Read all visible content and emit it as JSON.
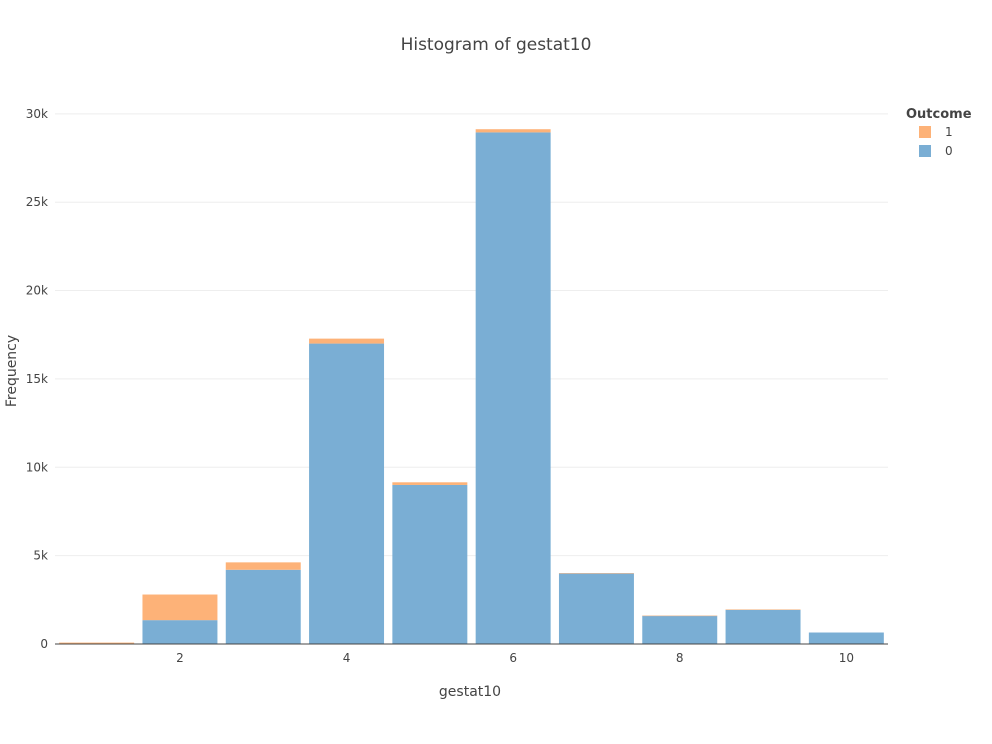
{
  "chart_data": {
    "type": "bar",
    "title": "Histogram of gestat10",
    "xlabel": "gestat10",
    "ylabel": "Frequency",
    "categories": [
      1,
      2,
      3,
      4,
      5,
      6,
      7,
      8,
      9,
      10
    ],
    "x_ticks": [
      2,
      4,
      6,
      8,
      10
    ],
    "x_tick_labels": [
      "2",
      "4",
      "6",
      "8",
      "10"
    ],
    "xlim": [
      0.5,
      10.5
    ],
    "ylim": [
      0,
      30500
    ],
    "y_ticks": [
      0,
      5000,
      10000,
      15000,
      20000,
      25000,
      30000
    ],
    "y_tick_labels": [
      "0",
      "5k",
      "10k",
      "15k",
      "20k",
      "25k",
      "30k"
    ],
    "stacked": true,
    "grid": true,
    "legend_position": "top-right",
    "legend_title": "Outcome",
    "series": [
      {
        "name": "0",
        "color": "#7aaed4",
        "values": [
          20,
          1350,
          4200,
          17000,
          9000,
          28950,
          4000,
          1600,
          1950,
          650
        ]
      },
      {
        "name": "1",
        "color": "#fdb278",
        "values": [
          60,
          1450,
          420,
          280,
          150,
          180,
          10,
          5,
          5,
          0
        ]
      }
    ]
  }
}
